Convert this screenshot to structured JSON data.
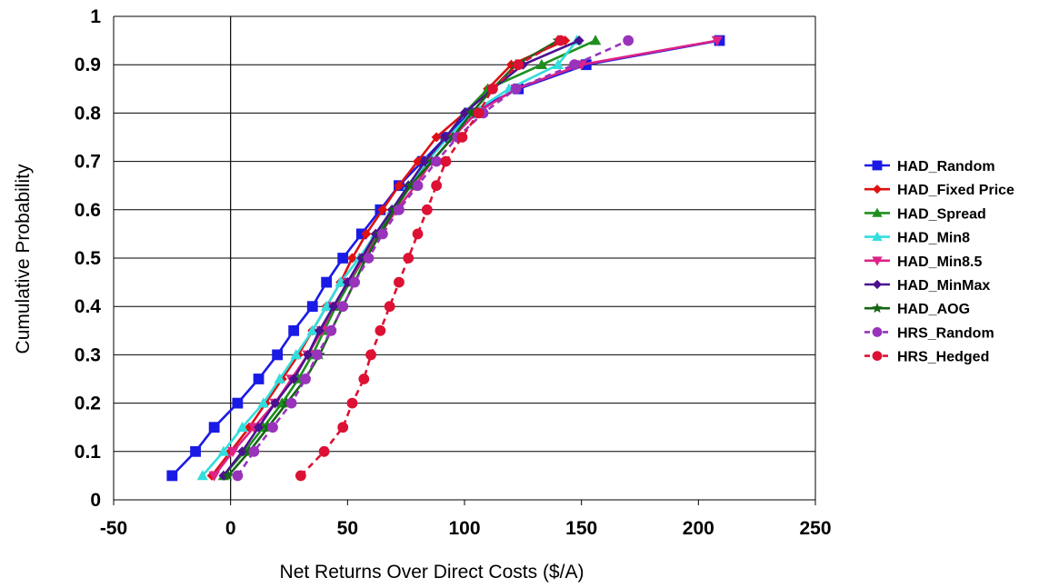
{
  "chart_data": {
    "type": "line",
    "title": "",
    "xlabel": "Net Returns Over Direct Costs ($/A)",
    "ylabel": "Cumulative Probability",
    "xlim": [
      -50,
      250
    ],
    "ylim": [
      0,
      1
    ],
    "xticks": [
      -50,
      0,
      50,
      100,
      150,
      200,
      250
    ],
    "yticks": [
      0,
      0.1,
      0.2,
      0.3,
      0.4,
      0.5,
      0.6,
      0.7,
      0.8,
      0.9,
      1
    ],
    "xtick_labels": [
      "-50",
      "0",
      "50",
      "100",
      "150",
      "200",
      "250"
    ],
    "ytick_labels": [
      "0",
      "0.1",
      "0.2",
      "0.3",
      "0.4",
      "0.5",
      "0.6",
      "0.7",
      "0.8",
      "0.9",
      "1"
    ],
    "grid": "horizontal",
    "legend_position": "right",
    "series": [
      {
        "name": "HAD_Random",
        "color": "#1a1ae6",
        "marker": "square",
        "dashed": false,
        "points": [
          [
            -25,
            0.05
          ],
          [
            -15,
            0.1
          ],
          [
            -7,
            0.15
          ],
          [
            3,
            0.2
          ],
          [
            12,
            0.25
          ],
          [
            20,
            0.3
          ],
          [
            27,
            0.35
          ],
          [
            35,
            0.4
          ],
          [
            41,
            0.45
          ],
          [
            48,
            0.5
          ],
          [
            56,
            0.55
          ],
          [
            64,
            0.6
          ],
          [
            72,
            0.65
          ],
          [
            82,
            0.7
          ],
          [
            92,
            0.75
          ],
          [
            102,
            0.8
          ],
          [
            123,
            0.85
          ],
          [
            152,
            0.9
          ],
          [
            209,
            0.95
          ]
        ]
      },
      {
        "name": "HAD_Fixed Price",
        "color": "#dd1111",
        "marker": "diamond",
        "dashed": false,
        "points": [
          [
            -8,
            0.05
          ],
          [
            0,
            0.1
          ],
          [
            8,
            0.15
          ],
          [
            15,
            0.2
          ],
          [
            22,
            0.25
          ],
          [
            29,
            0.3
          ],
          [
            35,
            0.35
          ],
          [
            41,
            0.4
          ],
          [
            47,
            0.45
          ],
          [
            52,
            0.5
          ],
          [
            58,
            0.55
          ],
          [
            65,
            0.6
          ],
          [
            72,
            0.65
          ],
          [
            80,
            0.7
          ],
          [
            88,
            0.75
          ],
          [
            100,
            0.8
          ],
          [
            110,
            0.85
          ],
          [
            120,
            0.9
          ],
          [
            143,
            0.95
          ]
        ]
      },
      {
        "name": "HAD_Spread",
        "color": "#1e8f1e",
        "marker": "triangle",
        "dashed": false,
        "points": [
          [
            -3,
            0.05
          ],
          [
            6,
            0.1
          ],
          [
            14,
            0.15
          ],
          [
            22,
            0.2
          ],
          [
            29,
            0.25
          ],
          [
            35,
            0.3
          ],
          [
            40,
            0.35
          ],
          [
            45,
            0.4
          ],
          [
            51,
            0.45
          ],
          [
            57,
            0.5
          ],
          [
            63,
            0.55
          ],
          [
            70,
            0.6
          ],
          [
            77,
            0.65
          ],
          [
            84,
            0.7
          ],
          [
            92,
            0.75
          ],
          [
            100,
            0.8
          ],
          [
            110,
            0.85
          ],
          [
            133,
            0.9
          ],
          [
            156,
            0.95
          ]
        ]
      },
      {
        "name": "HAD_Min8",
        "color": "#33dddd",
        "marker": "triangle",
        "dashed": false,
        "points": [
          [
            -12,
            0.05
          ],
          [
            -3,
            0.1
          ],
          [
            5,
            0.15
          ],
          [
            14,
            0.2
          ],
          [
            21,
            0.25
          ],
          [
            28,
            0.3
          ],
          [
            35,
            0.35
          ],
          [
            41,
            0.4
          ],
          [
            47,
            0.45
          ],
          [
            55,
            0.5
          ],
          [
            62,
            0.55
          ],
          [
            69,
            0.6
          ],
          [
            76,
            0.65
          ],
          [
            84,
            0.7
          ],
          [
            93,
            0.75
          ],
          [
            103,
            0.8
          ],
          [
            119,
            0.85
          ],
          [
            140,
            0.9
          ],
          [
            148,
            0.95
          ]
        ]
      },
      {
        "name": "HAD_Min8.5",
        "color": "#dd2288",
        "marker": "triangle-down",
        "dashed": false,
        "points": [
          [
            -7,
            0.05
          ],
          [
            1,
            0.1
          ],
          [
            10,
            0.15
          ],
          [
            19,
            0.2
          ],
          [
            26,
            0.25
          ],
          [
            33,
            0.3
          ],
          [
            39,
            0.35
          ],
          [
            44,
            0.4
          ],
          [
            50,
            0.45
          ],
          [
            57,
            0.5
          ],
          [
            64,
            0.55
          ],
          [
            71,
            0.6
          ],
          [
            79,
            0.65
          ],
          [
            86,
            0.7
          ],
          [
            95,
            0.75
          ],
          [
            105,
            0.8
          ],
          [
            122,
            0.85
          ],
          [
            150,
            0.9
          ],
          [
            208,
            0.95
          ]
        ]
      },
      {
        "name": "HAD_MinMax",
        "color": "#4b1190",
        "marker": "diamond",
        "dashed": false,
        "points": [
          [
            -3,
            0.05
          ],
          [
            5,
            0.1
          ],
          [
            12,
            0.15
          ],
          [
            19,
            0.2
          ],
          [
            27,
            0.25
          ],
          [
            33,
            0.3
          ],
          [
            38,
            0.35
          ],
          [
            44,
            0.4
          ],
          [
            50,
            0.45
          ],
          [
            56,
            0.5
          ],
          [
            62,
            0.55
          ],
          [
            69,
            0.6
          ],
          [
            76,
            0.65
          ],
          [
            83,
            0.7
          ],
          [
            92,
            0.75
          ],
          [
            100,
            0.8
          ],
          [
            112,
            0.85
          ],
          [
            125,
            0.9
          ],
          [
            149,
            0.95
          ]
        ]
      },
      {
        "name": "HAD_AOG",
        "color": "#156615",
        "marker": "star",
        "dashed": false,
        "points": [
          [
            -1,
            0.05
          ],
          [
            8,
            0.1
          ],
          [
            16,
            0.15
          ],
          [
            24,
            0.2
          ],
          [
            32,
            0.25
          ],
          [
            38,
            0.3
          ],
          [
            43,
            0.35
          ],
          [
            48,
            0.4
          ],
          [
            53,
            0.45
          ],
          [
            58,
            0.5
          ],
          [
            64,
            0.55
          ],
          [
            70,
            0.6
          ],
          [
            77,
            0.65
          ],
          [
            86,
            0.7
          ],
          [
            95,
            0.75
          ],
          [
            103,
            0.8
          ],
          [
            112,
            0.85
          ],
          [
            122,
            0.9
          ],
          [
            140,
            0.95
          ]
        ]
      },
      {
        "name": "HRS_Random",
        "color": "#9933bb",
        "marker": "circle",
        "dashed": true,
        "points": [
          [
            3,
            0.05
          ],
          [
            10,
            0.1
          ],
          [
            18,
            0.15
          ],
          [
            26,
            0.2
          ],
          [
            32,
            0.25
          ],
          [
            37,
            0.3
          ],
          [
            43,
            0.35
          ],
          [
            48,
            0.4
          ],
          [
            53,
            0.45
          ],
          [
            59,
            0.5
          ],
          [
            65,
            0.55
          ],
          [
            72,
            0.6
          ],
          [
            80,
            0.65
          ],
          [
            88,
            0.7
          ],
          [
            97,
            0.75
          ],
          [
            108,
            0.8
          ],
          [
            122,
            0.85
          ],
          [
            147,
            0.9
          ],
          [
            170,
            0.95
          ]
        ]
      },
      {
        "name": "HRS_Hedged",
        "color": "#dd1133",
        "marker": "circle",
        "dashed": true,
        "points": [
          [
            30,
            0.05
          ],
          [
            40,
            0.1
          ],
          [
            48,
            0.15
          ],
          [
            52,
            0.2
          ],
          [
            57,
            0.25
          ],
          [
            60,
            0.3
          ],
          [
            64,
            0.35
          ],
          [
            68,
            0.4
          ],
          [
            72,
            0.45
          ],
          [
            76,
            0.5
          ],
          [
            80,
            0.55
          ],
          [
            84,
            0.6
          ],
          [
            88,
            0.65
          ],
          [
            92,
            0.7
          ],
          [
            99,
            0.75
          ],
          [
            106,
            0.8
          ],
          [
            112,
            0.85
          ],
          [
            123,
            0.9
          ],
          [
            141,
            0.95
          ]
        ]
      }
    ]
  }
}
